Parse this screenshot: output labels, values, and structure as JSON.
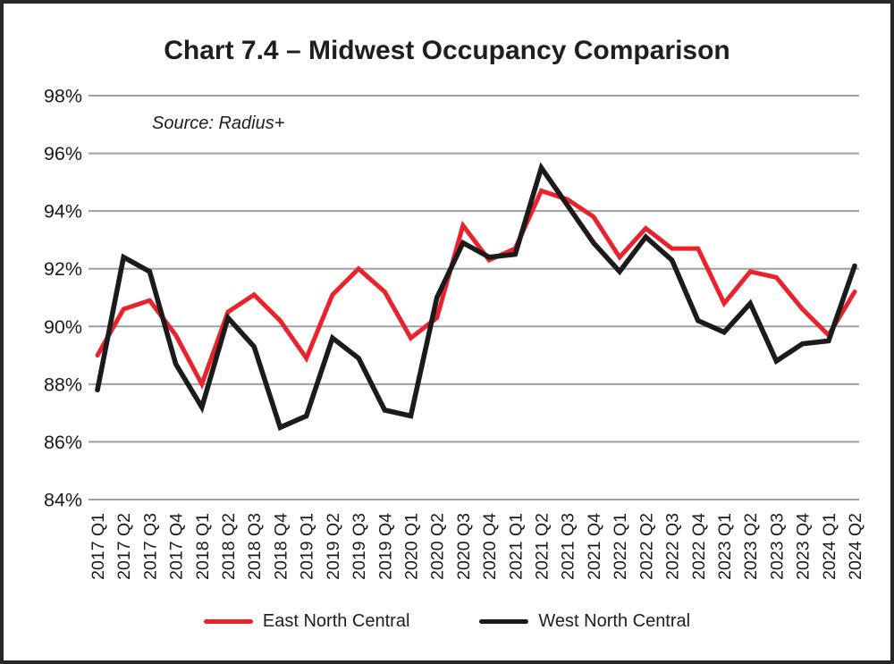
{
  "chart": {
    "title": "Chart 7.4 – Midwest Occupancy Comparison",
    "source_note": "Source: Radius+",
    "legend": [
      {
        "label": "East North Central",
        "color": "#e9222c"
      },
      {
        "label": "West North Central",
        "color": "#1b1b1b"
      }
    ]
  },
  "chart_data": {
    "type": "line",
    "title": "Chart 7.4 – Midwest Occupancy Comparison",
    "source_note": "Source: Radius+",
    "categories": [
      "2017 Q1",
      "2017 Q2",
      "2017 Q3",
      "2017 Q4",
      "2018 Q1",
      "2018 Q2",
      "2018 Q3",
      "2018 Q4",
      "2019 Q1",
      "2019 Q2",
      "2019 Q3",
      "2019 Q4",
      "2020 Q1",
      "2020 Q2",
      "2020 Q3",
      "2020 Q4",
      "2021 Q1",
      "2021 Q2",
      "2021 Q3",
      "2021 Q4",
      "2022 Q1",
      "2022 Q2",
      "2022 Q3",
      "2022 Q4",
      "2023 Q1",
      "2023 Q2",
      "2023 Q3",
      "2023 Q4",
      "2024 Q1",
      "2024 Q2"
    ],
    "series": [
      {
        "name": "East North Central",
        "color": "#e9222c",
        "values": [
          89.0,
          90.6,
          90.9,
          89.7,
          88.0,
          90.5,
          91.1,
          90.2,
          88.9,
          91.1,
          92.0,
          91.2,
          89.6,
          90.3,
          93.5,
          92.3,
          92.7,
          94.7,
          94.4,
          93.8,
          92.4,
          93.4,
          92.7,
          92.7,
          90.8,
          91.9,
          91.7,
          90.6,
          89.7,
          91.2
        ]
      },
      {
        "name": "West North Central",
        "color": "#1b1b1b",
        "values": [
          87.8,
          92.4,
          91.9,
          88.7,
          87.2,
          90.3,
          89.3,
          86.5,
          86.9,
          89.6,
          88.9,
          87.1,
          86.9,
          91.0,
          92.9,
          92.4,
          92.5,
          95.5,
          94.2,
          92.9,
          91.9,
          93.1,
          92.3,
          90.2,
          89.8,
          90.8,
          88.8,
          89.4,
          89.5,
          92.1
        ]
      }
    ],
    "xlabel": "",
    "ylabel": "",
    "ylim": [
      84,
      98
    ],
    "yticks": [
      84,
      86,
      88,
      90,
      92,
      94,
      96,
      98
    ],
    "ytick_format": "percent",
    "grid": "horizontal",
    "gridline_color": "#9d9fa2",
    "legend_position": "bottom"
  }
}
